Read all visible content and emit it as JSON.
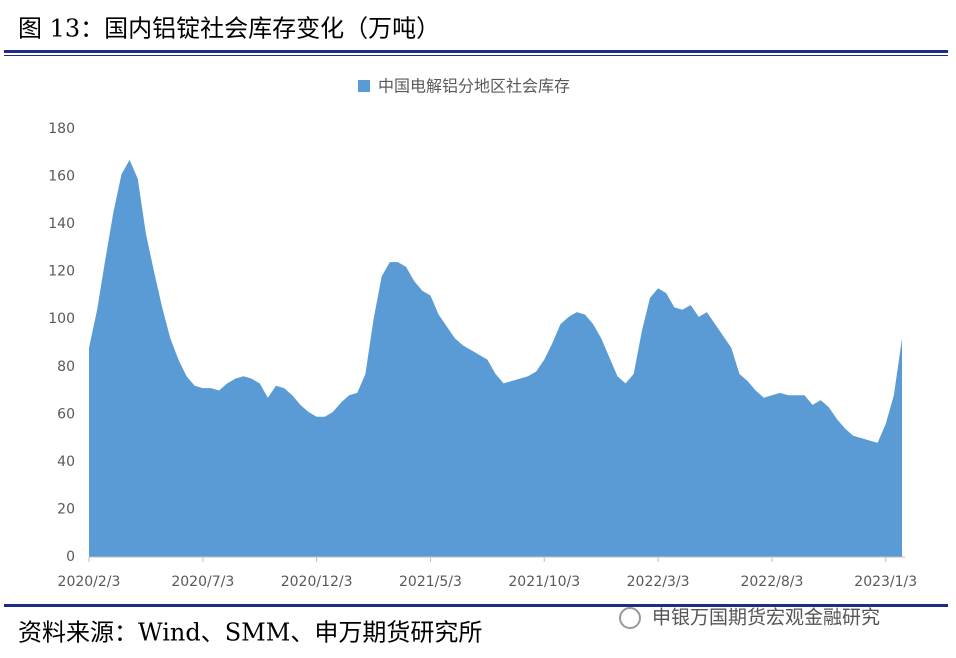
{
  "document": {
    "title": "图 13：国内铝锭社会库存变化（万吨）",
    "source": "资料来源：Wind、SMM、申万期货研究所",
    "watermark": "申银万国期货宏观金融研究"
  },
  "chart_data": {
    "type": "area",
    "categories": [
      "2020/2/3",
      null,
      null,
      null,
      null,
      null,
      null,
      null,
      null,
      null,
      null,
      null,
      null,
      null,
      "2020/7/3",
      null,
      null,
      null,
      null,
      null,
      null,
      null,
      null,
      null,
      null,
      null,
      null,
      null,
      "2020/12/3",
      null,
      null,
      null,
      null,
      null,
      null,
      null,
      null,
      null,
      null,
      null,
      null,
      null,
      "2021/5/3",
      null,
      null,
      null,
      null,
      null,
      null,
      null,
      null,
      null,
      null,
      null,
      null,
      null,
      "2021/10/3",
      null,
      null,
      null,
      null,
      null,
      null,
      null,
      null,
      null,
      null,
      null,
      null,
      null,
      "2022/3/3",
      null,
      null,
      null,
      null,
      null,
      null,
      null,
      null,
      null,
      null,
      null,
      null,
      null,
      "2022/8/3",
      null,
      null,
      null,
      null,
      null,
      null,
      null,
      null,
      null,
      null,
      null,
      null,
      null,
      "2023/1/3",
      null,
      null
    ],
    "series": [
      {
        "name": "中国电解铝分地区社会库存",
        "color": "#5b9bd5",
        "values": [
          88,
          104,
          125,
          145,
          161,
          167,
          159,
          136,
          120,
          105,
          92,
          83,
          76,
          72,
          71,
          71,
          70,
          73,
          75,
          76,
          75,
          73,
          67,
          72,
          71,
          68,
          64,
          61,
          59,
          59,
          61,
          65,
          68,
          69,
          77,
          100,
          118,
          124,
          124,
          122,
          116,
          112,
          110,
          102,
          97,
          92,
          89,
          87,
          85,
          83,
          77,
          73,
          74,
          75,
          76,
          78,
          83,
          90,
          98,
          101,
          103,
          102,
          98,
          92,
          84,
          76,
          73,
          77,
          95,
          109,
          113,
          111,
          105,
          104,
          106,
          101,
          103,
          98,
          93,
          88,
          77,
          74,
          70,
          67,
          68,
          69,
          68,
          68,
          68,
          64,
          66,
          63,
          58,
          54,
          51,
          50,
          49,
          48,
          56,
          68,
          92
        ]
      }
    ],
    "ylim": [
      0,
      180
    ],
    "yticks": [
      0,
      20,
      40,
      60,
      80,
      100,
      120,
      140,
      160,
      180
    ],
    "legend": "top"
  }
}
